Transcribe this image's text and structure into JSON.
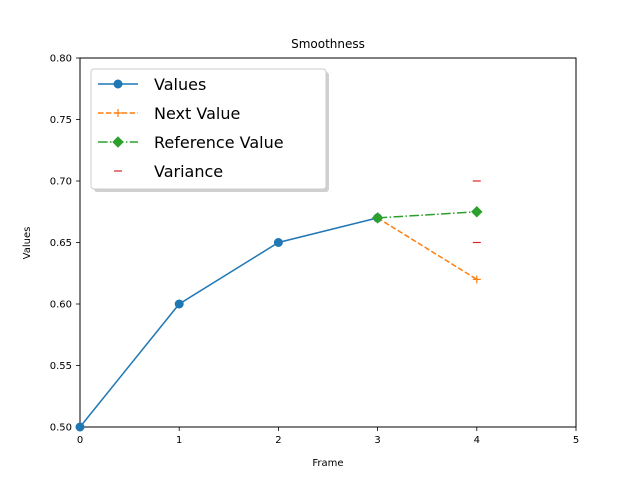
{
  "chart_data": {
    "type": "line",
    "title": "Smoothness",
    "xlabel": "Frame",
    "ylabel": "Values",
    "xlim": [
      0,
      5
    ],
    "ylim": [
      0.5,
      0.8
    ],
    "xticks": [
      "0",
      "1",
      "2",
      "3",
      "4",
      "5"
    ],
    "yticks": [
      "0.50",
      "0.55",
      "0.60",
      "0.65",
      "0.70",
      "0.75",
      "0.80"
    ],
    "grid": false,
    "legend_position": "top-left",
    "series": [
      {
        "name": "Values",
        "style": "solid",
        "marker": "circle",
        "color": "#1f77b4",
        "x": [
          0,
          1,
          2,
          3
        ],
        "y": [
          0.5,
          0.6,
          0.65,
          0.67
        ]
      },
      {
        "name": "Next Value",
        "style": "dashed",
        "marker": "plus",
        "color": "#ff7f0e",
        "x": [
          3,
          4
        ],
        "y": [
          0.67,
          0.62
        ]
      },
      {
        "name": "Reference Value",
        "style": "dashdot",
        "marker": "diamond",
        "color": "#2ca02c",
        "x": [
          3,
          4
        ],
        "y": [
          0.67,
          0.675
        ]
      },
      {
        "name": "Variance",
        "style": "none",
        "marker": "hline",
        "color": "#d62728",
        "x": [
          4,
          4
        ],
        "y": [
          0.7,
          0.65
        ]
      }
    ]
  }
}
